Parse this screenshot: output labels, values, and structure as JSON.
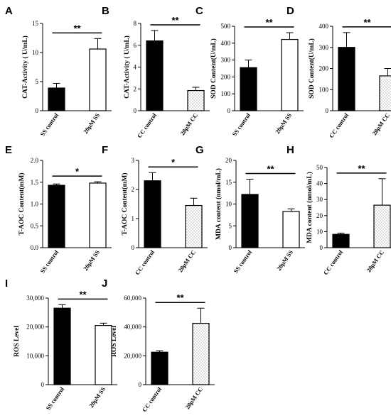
{
  "chart_data": [
    {
      "panel": "A",
      "type": "bar",
      "ylabel": "CAT-Activity ( U/mL)",
      "categories": [
        "SS control",
        "20μM SS"
      ],
      "values": [
        3.9,
        10.6
      ],
      "errors": [
        0.8,
        1.8
      ],
      "fills": [
        "solid",
        "open"
      ],
      "ylim": [
        0,
        15
      ],
      "yticks": [
        "0",
        "5",
        "10",
        "15"
      ],
      "significance": "**"
    },
    {
      "panel": "B",
      "type": "bar",
      "ylabel": "CAT-Activity ( U/mL)",
      "categories": [
        "CC control",
        "20μM CC"
      ],
      "values": [
        6.4,
        1.85
      ],
      "errors": [
        0.95,
        0.3
      ],
      "fills": [
        "solid",
        "dotted"
      ],
      "ylim": [
        0,
        8
      ],
      "yticks": [
        "0",
        "2",
        "4",
        "6",
        "8"
      ],
      "significance": "**"
    },
    {
      "panel": "C",
      "type": "bar",
      "ylabel": "SOD Content(U/mL)",
      "categories": [
        "SS control",
        "20μM SS"
      ],
      "values": [
        255,
        422
      ],
      "errors": [
        45,
        40
      ],
      "fills": [
        "solid",
        "open"
      ],
      "ylim": [
        0,
        500
      ],
      "yticks": [
        "0",
        "100",
        "200",
        "300",
        "400",
        "500"
      ],
      "significance": "**"
    },
    {
      "panel": "D",
      "type": "bar",
      "ylabel": "SOD Content(U/mL)",
      "categories": [
        "CC control",
        "20μM CC"
      ],
      "values": [
        300,
        165
      ],
      "errors": [
        70,
        35
      ],
      "fills": [
        "solid",
        "dotted"
      ],
      "ylim": [
        0,
        400
      ],
      "yticks": [
        "0",
        "100",
        "200",
        "300",
        "400"
      ],
      "significance": "**"
    },
    {
      "panel": "E",
      "type": "bar",
      "ylabel": "T-AOC Content(mM)",
      "categories": [
        "SS control",
        "20μM SS"
      ],
      "values": [
        1.43,
        1.48
      ],
      "errors": [
        0.03,
        0.03
      ],
      "fills": [
        "solid",
        "open"
      ],
      "ylim": [
        0,
        2.0
      ],
      "yticks": [
        "0.0",
        "0.5",
        "1.0",
        "1.5",
        "2.0"
      ],
      "significance": "*"
    },
    {
      "panel": "F",
      "type": "bar",
      "ylabel": "T-AOC Content(mM)",
      "categories": [
        "CC control",
        "20μM CC"
      ],
      "values": [
        2.3,
        1.45
      ],
      "errors": [
        0.28,
        0.25
      ],
      "fills": [
        "solid",
        "dotted"
      ],
      "ylim": [
        0,
        3
      ],
      "yticks": [
        "0",
        "1",
        "2",
        "3"
      ],
      "significance": "*"
    },
    {
      "panel": "G",
      "type": "bar",
      "ylabel": "MDA content (nmol/mL)",
      "categories": [
        "SS control",
        "20μM SS"
      ],
      "values": [
        12.2,
        8.3
      ],
      "errors": [
        3.5,
        0.6
      ],
      "fills": [
        "solid",
        "open"
      ],
      "ylim": [
        0,
        20
      ],
      "yticks": [
        "0",
        "5",
        "10",
        "15",
        "20"
      ],
      "significance": "**"
    },
    {
      "panel": "H",
      "type": "bar",
      "ylabel": "MDA content (nmol/mL)",
      "categories": [
        "CC control",
        "20μM CC"
      ],
      "values": [
        8.3,
        26.5
      ],
      "errors": [
        0.8,
        16.5
      ],
      "fills": [
        "solid",
        "dotted"
      ],
      "ylim": [
        0,
        50
      ],
      "yticks": [
        "0",
        "10",
        "20",
        "30",
        "40",
        "50"
      ],
      "significance": "**"
    },
    {
      "panel": "I",
      "type": "bar",
      "ylabel": "ROS Level",
      "categories": [
        "SS control",
        "20μM SS"
      ],
      "values": [
        26500,
        20500
      ],
      "errors": [
        1200,
        800
      ],
      "fills": [
        "solid",
        "open"
      ],
      "ylim": [
        0,
        30000
      ],
      "yticks": [
        "0",
        "10,000",
        "20,000",
        "30,000"
      ],
      "significance": "**"
    },
    {
      "panel": "J",
      "type": "bar",
      "ylabel": "ROS Level",
      "categories": [
        "CC control",
        "20μM CC"
      ],
      "values": [
        22500,
        42500
      ],
      "errors": [
        1000,
        10500
      ],
      "fills": [
        "solid",
        "dotted"
      ],
      "ylim": [
        0,
        60000
      ],
      "yticks": [
        "0",
        "20,000",
        "40,000",
        "60,000"
      ],
      "significance": "**"
    }
  ]
}
